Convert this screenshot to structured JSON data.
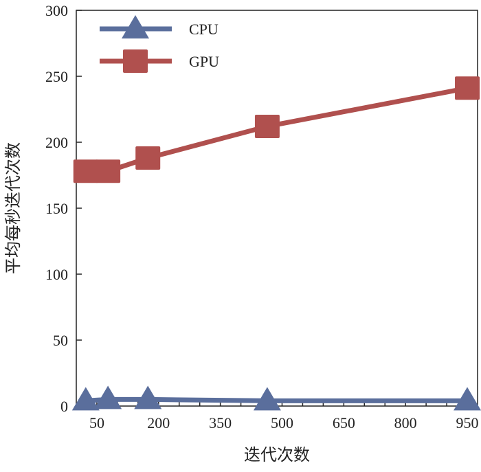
{
  "chart_data": {
    "type": "line",
    "title": "",
    "xlabel": "迭代次数",
    "ylabel": "平均每秒迭代次数",
    "xlim": [
      0,
      975
    ],
    "ylim": [
      0,
      300
    ],
    "xticks": [
      50,
      200,
      350,
      500,
      650,
      800,
      950
    ],
    "yticks": [
      0,
      50,
      100,
      150,
      200,
      250,
      300
    ],
    "grid": false,
    "legend": "top-left",
    "series": [
      {
        "name": "CPU",
        "marker": "triangle",
        "color": "#5a6e9c",
        "x": [
          23,
          77,
          174,
          464,
          950
        ],
        "y": [
          4,
          5,
          5,
          4,
          4
        ]
      },
      {
        "name": "GPU",
        "marker": "square",
        "color": "#b0504e",
        "x": [
          23,
          77,
          174,
          464,
          950
        ],
        "y": [
          178,
          178,
          188,
          212,
          241
        ]
      }
    ]
  }
}
